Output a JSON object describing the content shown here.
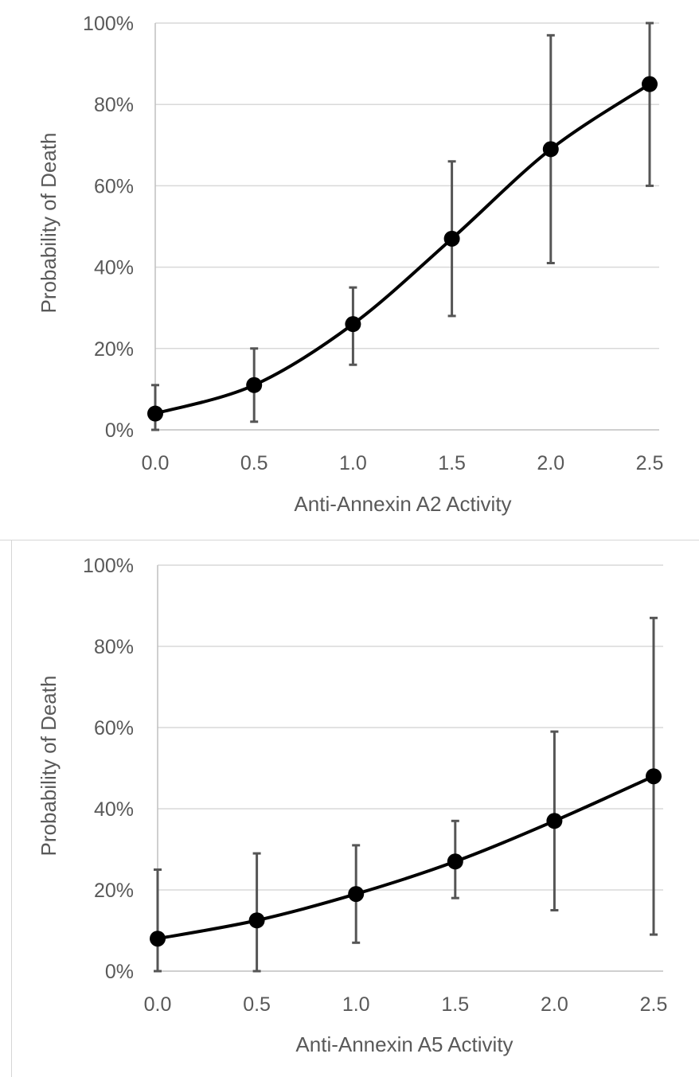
{
  "chart_data": [
    {
      "type": "line",
      "xlabel": "Anti-Annexin A2 Activity",
      "ylabel": "Probability of Death",
      "x_tick_labels": [
        "0.0",
        "0.5",
        "1.0",
        "1.5",
        "2.0",
        "2.5"
      ],
      "y_tick_labels": [
        "0%",
        "20%",
        "40%",
        "60%",
        "80%",
        "100%"
      ],
      "xlim": [
        0,
        2.5
      ],
      "ylim": [
        0,
        100
      ],
      "grid": "horizontal",
      "legend": "none",
      "series": [
        {
          "x": [
            0.0,
            0.5,
            1.0,
            1.5,
            2.0,
            2.5
          ],
          "y": [
            4,
            11,
            26,
            47,
            69,
            85
          ],
          "error_low": [
            0,
            2,
            16,
            28,
            41,
            60
          ],
          "error_high": [
            11,
            20,
            35,
            66,
            97,
            100
          ]
        }
      ]
    },
    {
      "type": "line",
      "xlabel": "Anti-Annexin A5 Activity",
      "ylabel": "Probability of Death",
      "x_tick_labels": [
        "0.0",
        "0.5",
        "1.0",
        "1.5",
        "2.0",
        "2.5"
      ],
      "y_tick_labels": [
        "0%",
        "20%",
        "40%",
        "60%",
        "80%",
        "100%"
      ],
      "xlim": [
        0,
        2.5
      ],
      "ylim": [
        0,
        100
      ],
      "grid": "horizontal",
      "legend": "none",
      "series": [
        {
          "x": [
            0.0,
            0.5,
            1.0,
            1.5,
            2.0,
            2.5
          ],
          "y": [
            8,
            12.5,
            19,
            27,
            37,
            48
          ],
          "error_low": [
            0,
            0,
            7,
            18,
            15,
            9
          ],
          "error_high": [
            25,
            29,
            31,
            37,
            59,
            87
          ]
        }
      ]
    }
  ],
  "colors": {
    "line": "#000000",
    "error_bar": "#555555",
    "grid": "#d9d9d9",
    "axis": "#bfbfbf",
    "text": "#595959"
  }
}
